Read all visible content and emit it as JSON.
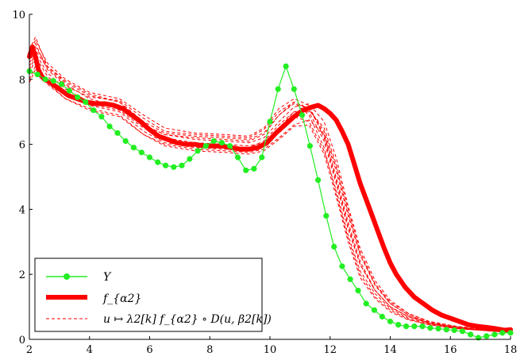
{
  "chart_data": {
    "type": "line",
    "title": "",
    "xlabel": "",
    "ylabel": "",
    "xlim": [
      2,
      18
    ],
    "ylim": [
      0,
      10
    ],
    "x_ticks": [
      "2",
      "4",
      "6",
      "8",
      "10",
      "12",
      "14",
      "16",
      "18"
    ],
    "y_ticks": [
      "0",
      "2",
      "4",
      "6",
      "8",
      "10"
    ],
    "grid": false,
    "legend": {
      "placement": "bottom-left",
      "entries": [
        {
          "label": "Y",
          "series": "Y"
        },
        {
          "label": "f_{α2}",
          "series": "f_alpha2"
        },
        {
          "label": "u ↦ λ2[k] f_{α2} ∘ D(u, β2[k])",
          "series": "warped"
        }
      ]
    },
    "series": [
      {
        "key": "Y",
        "color": "#22ee22",
        "style": "line-with-dots",
        "x": [
          2.0,
          2.27,
          2.53,
          2.8,
          3.07,
          3.33,
          3.6,
          3.87,
          4.13,
          4.4,
          4.67,
          4.93,
          5.2,
          5.47,
          5.73,
          6.0,
          6.27,
          6.53,
          6.8,
          7.07,
          7.33,
          7.6,
          7.87,
          8.13,
          8.4,
          8.67,
          8.93,
          9.2,
          9.47,
          9.73,
          10.0,
          10.27,
          10.53,
          10.8,
          11.07,
          11.33,
          11.6,
          11.87,
          12.13,
          12.4,
          12.67,
          12.93,
          13.2,
          13.47,
          13.73,
          14.0,
          14.27,
          14.53,
          14.8,
          15.07,
          15.33,
          15.6,
          15.87,
          16.13,
          16.4,
          16.67,
          16.93,
          17.2,
          17.47,
          17.73,
          18.0
        ],
        "y": [
          8.25,
          8.15,
          8.0,
          7.95,
          7.85,
          7.65,
          7.45,
          7.3,
          7.05,
          6.85,
          6.55,
          6.35,
          6.1,
          5.9,
          5.75,
          5.6,
          5.45,
          5.35,
          5.3,
          5.35,
          5.55,
          5.8,
          5.95,
          6.1,
          6.05,
          5.95,
          5.6,
          5.2,
          5.25,
          5.6,
          6.7,
          7.7,
          8.4,
          7.7,
          6.9,
          5.95,
          4.9,
          3.8,
          2.85,
          2.25,
          1.85,
          1.5,
          1.1,
          0.9,
          0.7,
          0.55,
          0.45,
          0.4,
          0.4,
          0.4,
          0.35,
          0.33,
          0.3,
          0.28,
          0.25,
          0.15,
          0.05,
          0.1,
          0.15,
          0.2,
          0.2
        ]
      },
      {
        "key": "f_alpha2",
        "color": "#ff0000",
        "style": "thick-line",
        "x": [
          2.0,
          2.1,
          2.2,
          2.3,
          2.4,
          2.5,
          2.7,
          3.0,
          3.3,
          3.6,
          3.9,
          4.2,
          4.5,
          4.8,
          5.1,
          5.4,
          5.7,
          6.0,
          6.3,
          6.6,
          6.9,
          7.2,
          7.5,
          7.8,
          8.1,
          8.4,
          8.7,
          9.0,
          9.3,
          9.6,
          9.9,
          10.2,
          10.5,
          10.8,
          11.1,
          11.4,
          11.6,
          11.8,
          12.0,
          12.2,
          12.4,
          12.6,
          12.8,
          13.0,
          13.2,
          13.4,
          13.6,
          13.8,
          14.0,
          14.2,
          14.5,
          14.8,
          15.1,
          15.4,
          15.7,
          16.0,
          16.3,
          16.6,
          16.9,
          17.2,
          17.5,
          17.8,
          18.0
        ],
        "y": [
          8.7,
          9.0,
          8.7,
          8.3,
          8.1,
          8.0,
          7.9,
          7.7,
          7.5,
          7.4,
          7.3,
          7.25,
          7.25,
          7.2,
          7.1,
          6.9,
          6.7,
          6.45,
          6.25,
          6.15,
          6.05,
          6.0,
          6.0,
          5.95,
          5.95,
          5.95,
          5.9,
          5.85,
          5.85,
          5.9,
          6.05,
          6.35,
          6.6,
          6.85,
          7.05,
          7.15,
          7.2,
          7.1,
          6.95,
          6.75,
          6.4,
          6.0,
          5.4,
          4.8,
          4.3,
          3.8,
          3.3,
          2.8,
          2.35,
          2.0,
          1.6,
          1.3,
          1.1,
          0.9,
          0.75,
          0.65,
          0.55,
          0.45,
          0.4,
          0.37,
          0.33,
          0.28,
          0.3
        ]
      },
      {
        "key": "warped",
        "color": "#ff0000",
        "style": "dashed-thin",
        "curves": [
          {
            "x": [
              2.0,
              2.2,
              2.6,
              3.2,
              4.0,
              5.0,
              5.8,
              6.5,
              7.5,
              8.5,
              9.3,
              9.8,
              10.3,
              10.8,
              11.3,
              11.8,
              12.2,
              12.6,
              13.0,
              13.5,
              14.0,
              14.6,
              15.3,
              16.2,
              17.0,
              17.7,
              18.0
            ],
            "y": [
              8.9,
              9.3,
              8.4,
              7.9,
              7.5,
              7.3,
              6.6,
              6.3,
              6.2,
              6.15,
              6.1,
              6.3,
              6.9,
              7.3,
              7.1,
              6.3,
              5.0,
              3.6,
              2.4,
              1.5,
              1.0,
              0.7,
              0.5,
              0.35,
              0.3,
              0.25,
              0.25
            ]
          },
          {
            "x": [
              2.0,
              2.2,
              2.6,
              3.2,
              4.0,
              5.0,
              5.8,
              6.5,
              7.5,
              8.5,
              9.3,
              9.8,
              10.3,
              10.8,
              11.3,
              11.8,
              12.2,
              12.6,
              13.0,
              13.5,
              14.0,
              14.6,
              15.3,
              16.2,
              17.0,
              17.7,
              18.0
            ],
            "y": [
              8.4,
              8.8,
              8.2,
              7.7,
              7.3,
              7.2,
              6.6,
              6.2,
              6.05,
              6.0,
              5.95,
              6.05,
              6.5,
              7.0,
              7.05,
              6.5,
              5.4,
              4.0,
              2.7,
              1.7,
              1.1,
              0.75,
              0.5,
              0.38,
              0.3,
              0.25,
              0.25
            ]
          },
          {
            "x": [
              2.0,
              2.2,
              2.6,
              3.2,
              4.0,
              5.0,
              5.8,
              6.5,
              7.5,
              8.5,
              9.3,
              9.8,
              10.3,
              10.8,
              11.3,
              11.8,
              12.2,
              12.6,
              13.0,
              13.5,
              14.0,
              14.6,
              15.3,
              16.2,
              17.0,
              17.7,
              18.0
            ],
            "y": [
              8.0,
              8.4,
              8.0,
              7.5,
              7.2,
              7.0,
              6.4,
              6.05,
              5.9,
              5.85,
              5.8,
              5.95,
              6.4,
              6.85,
              6.7,
              5.8,
              4.6,
              3.2,
              2.1,
              1.4,
              0.95,
              0.65,
              0.48,
              0.35,
              0.3,
              0.25,
              0.25
            ]
          },
          {
            "x": [
              2.0,
              2.2,
              2.6,
              3.2,
              4.0,
              5.0,
              5.8,
              6.5,
              7.5,
              8.5,
              9.3,
              9.8,
              10.3,
              10.8,
              11.3,
              11.8,
              12.2,
              12.6,
              13.0,
              13.5,
              14.0,
              14.6,
              15.3,
              16.2,
              17.0,
              17.7,
              18.0
            ],
            "y": [
              8.6,
              9.1,
              8.3,
              7.8,
              7.45,
              7.35,
              6.8,
              6.4,
              6.3,
              6.25,
              6.2,
              6.45,
              7.0,
              7.3,
              6.9,
              5.9,
              4.5,
              3.1,
              2.0,
              1.3,
              0.9,
              0.62,
              0.45,
              0.33,
              0.28,
              0.23,
              0.22
            ]
          },
          {
            "x": [
              2.0,
              2.2,
              2.6,
              3.2,
              4.0,
              5.0,
              5.8,
              6.5,
              7.5,
              8.5,
              9.3,
              9.8,
              10.3,
              10.8,
              11.3,
              11.8,
              12.2,
              12.6,
              13.0,
              13.5,
              14.0,
              14.6,
              15.3,
              16.2,
              17.0,
              17.7,
              18.0
            ],
            "y": [
              8.2,
              8.6,
              7.9,
              7.4,
              7.1,
              6.9,
              6.3,
              6.0,
              5.85,
              5.8,
              5.75,
              5.85,
              6.2,
              6.6,
              6.75,
              6.3,
              5.2,
              3.8,
              2.6,
              1.7,
              1.15,
              0.8,
              0.55,
              0.4,
              0.33,
              0.27,
              0.27
            ]
          },
          {
            "x": [
              2.0,
              2.2,
              2.6,
              3.2,
              4.0,
              5.0,
              5.8,
              6.5,
              7.5,
              8.5,
              9.3,
              9.8,
              10.3,
              10.8,
              11.3,
              11.8,
              12.2,
              12.6,
              13.0,
              13.5,
              14.0,
              14.6,
              15.3,
              16.2,
              17.0,
              17.7,
              18.0
            ],
            "y": [
              8.8,
              9.2,
              8.5,
              8.0,
              7.6,
              7.4,
              6.9,
              6.5,
              6.35,
              6.3,
              6.25,
              6.5,
              7.1,
              7.4,
              7.2,
              6.2,
              4.9,
              3.5,
              2.3,
              1.5,
              1.0,
              0.7,
              0.5,
              0.36,
              0.3,
              0.25,
              0.24
            ]
          },
          {
            "x": [
              2.0,
              2.2,
              2.6,
              3.2,
              4.0,
              5.0,
              5.8,
              6.5,
              7.5,
              8.5,
              9.3,
              9.8,
              10.3,
              10.8,
              11.3,
              11.8,
              12.2,
              12.6,
              13.0,
              13.5,
              14.0,
              14.6,
              15.3,
              16.2,
              17.0,
              17.7,
              18.0
            ],
            "y": [
              8.3,
              8.7,
              8.1,
              7.6,
              7.25,
              7.05,
              6.5,
              6.15,
              6.0,
              5.95,
              5.9,
              6.1,
              6.6,
              7.0,
              7.0,
              6.1,
              4.8,
              3.4,
              2.3,
              1.5,
              1.0,
              0.7,
              0.5,
              0.36,
              0.3,
              0.25,
              0.25
            ]
          },
          {
            "x": [
              2.0,
              2.2,
              2.6,
              3.2,
              4.0,
              5.0,
              5.8,
              6.5,
              7.5,
              8.5,
              9.3,
              9.8,
              10.3,
              10.8,
              11.3,
              11.8,
              12.2,
              12.6,
              13.0,
              13.5,
              14.0,
              14.6,
              15.3,
              16.2,
              17.0,
              17.7,
              18.0
            ],
            "y": [
              8.5,
              8.9,
              8.35,
              7.85,
              7.4,
              7.15,
              6.6,
              6.3,
              6.15,
              6.1,
              6.05,
              6.2,
              6.7,
              7.15,
              7.25,
              6.7,
              5.6,
              4.1,
              2.8,
              1.8,
              1.2,
              0.8,
              0.55,
              0.4,
              0.32,
              0.26,
              0.26
            ]
          },
          {
            "x": [
              2.0,
              2.2,
              2.6,
              3.2,
              4.0,
              5.0,
              5.8,
              6.5,
              7.5,
              8.5,
              9.3,
              9.8,
              10.3,
              10.8,
              11.3,
              11.8,
              12.2,
              12.6,
              13.0,
              13.5,
              14.0,
              14.6,
              15.3,
              16.2,
              17.0,
              17.7,
              18.0
            ],
            "y": [
              7.9,
              8.3,
              7.85,
              7.4,
              7.05,
              6.85,
              6.3,
              5.95,
              5.8,
              5.75,
              5.7,
              5.8,
              6.15,
              6.55,
              6.6,
              5.7,
              4.4,
              3.0,
              1.9,
              1.25,
              0.85,
              0.6,
              0.45,
              0.33,
              0.28,
              0.23,
              0.22
            ]
          },
          {
            "x": [
              2.0,
              2.2,
              2.6,
              3.2,
              4.0,
              5.0,
              5.8,
              6.5,
              7.5,
              8.5,
              9.3,
              9.8,
              10.3,
              10.8,
              11.3,
              11.8,
              12.2,
              12.6,
              13.0,
              13.5,
              14.0,
              14.6,
              15.3,
              16.2,
              17.0,
              17.7,
              18.0
            ],
            "y": [
              8.7,
              9.0,
              8.4,
              7.95,
              7.55,
              7.3,
              6.7,
              6.35,
              6.25,
              6.2,
              6.15,
              6.35,
              6.9,
              7.25,
              7.1,
              6.4,
              5.3,
              3.9,
              2.6,
              1.65,
              1.1,
              0.75,
              0.52,
              0.37,
              0.3,
              0.25,
              0.24
            ]
          }
        ]
      }
    ]
  }
}
